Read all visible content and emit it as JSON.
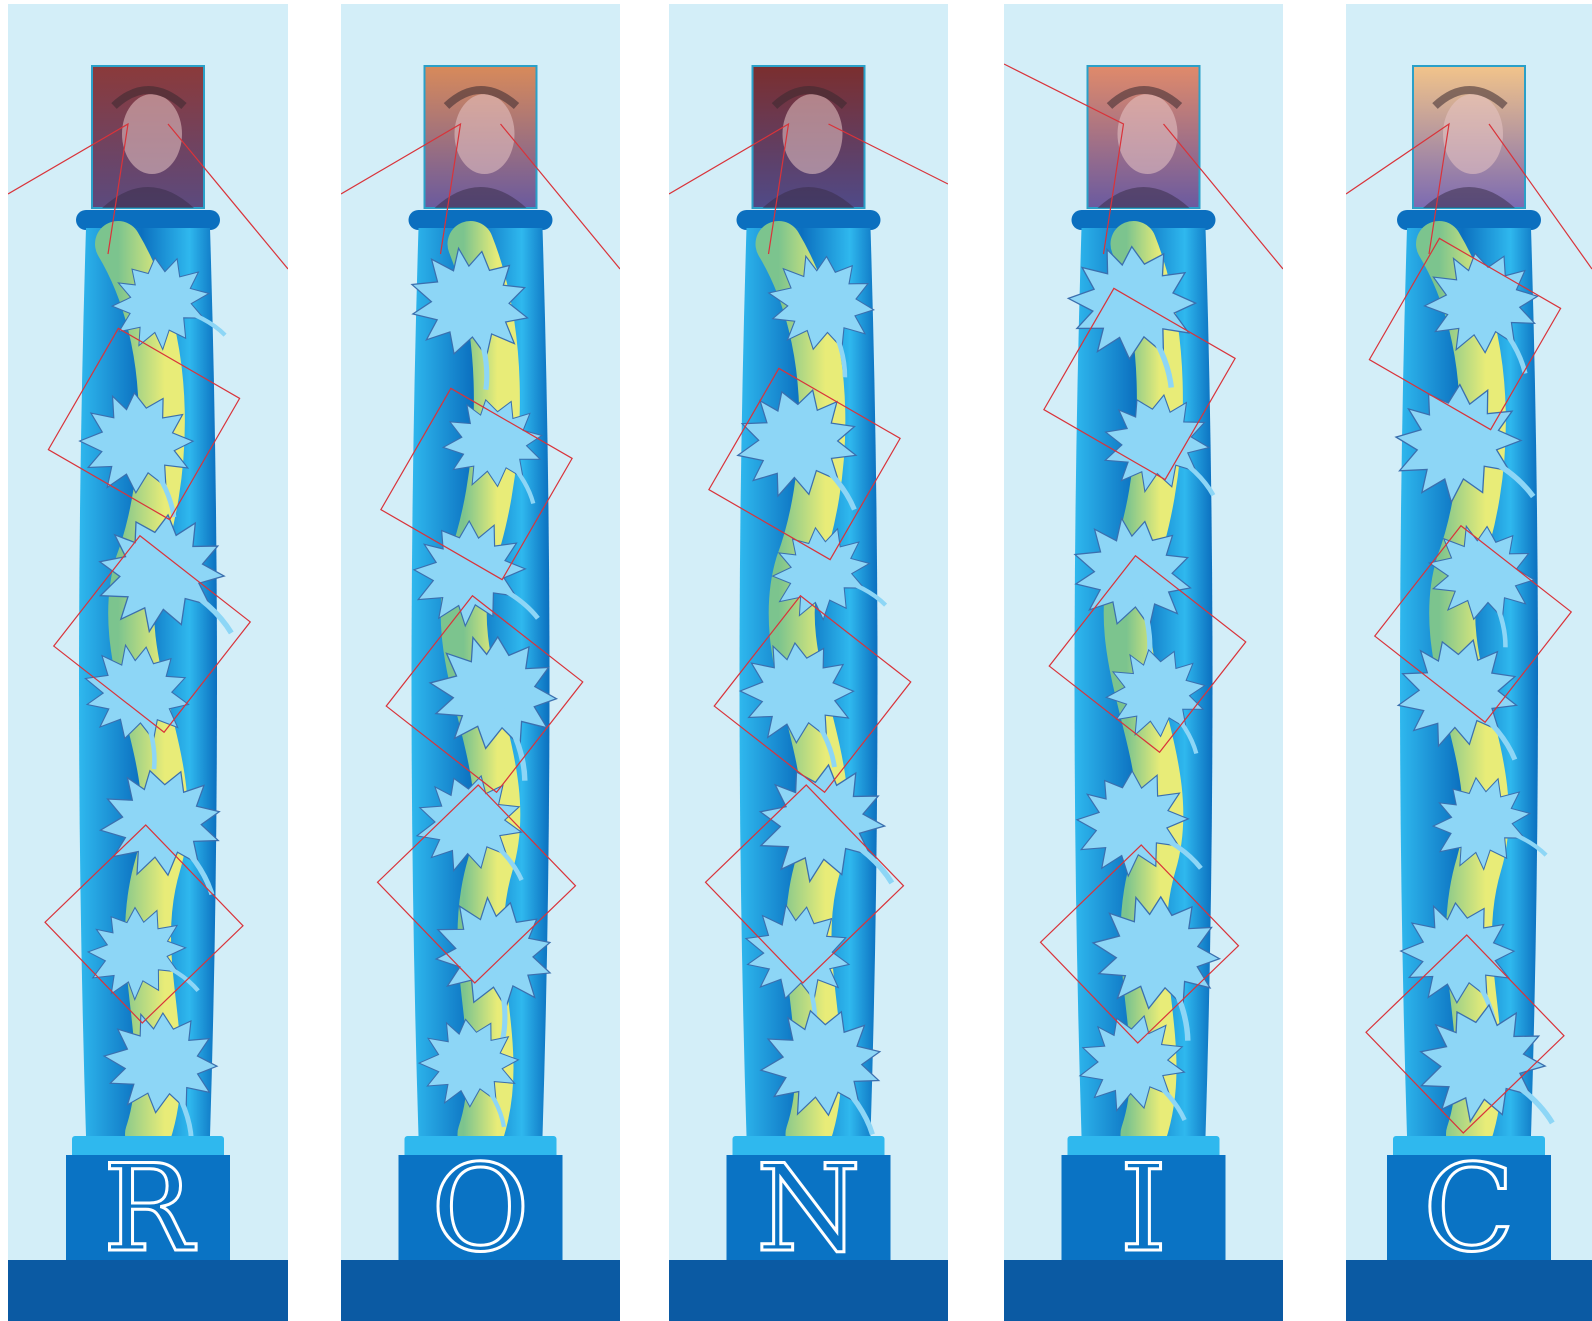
{
  "colors": {
    "sky": "#d3eef8",
    "column_dark": "#0b6fbf",
    "column_light": "#2fb8ee",
    "vine_yellow": "#e8ec78",
    "vine_green": "#7cc48e",
    "leaf_fill": "#8dd6f6",
    "leaf_stroke": "#3b6fae",
    "base_dark": "#0b5aa3",
    "pedestal": "#0a73c4",
    "overlay_red": "#d9333a",
    "letter": "#ffffff"
  },
  "panels": [
    {
      "letter": "R",
      "portrait": "portrait-1",
      "tone": [
        "#8b3a3a",
        "#5b4a7e"
      ]
    },
    {
      "letter": "O",
      "portrait": "portrait-2",
      "tone": [
        "#d88a5a",
        "#6a5a9e"
      ]
    },
    {
      "letter": "N",
      "portrait": "portrait-3",
      "tone": [
        "#7b2e2e",
        "#4f4a88"
      ]
    },
    {
      "letter": "I",
      "portrait": "portrait-4",
      "tone": [
        "#e08a6a",
        "#6a5aa0"
      ]
    },
    {
      "letter": "C",
      "portrait": "portrait-5",
      "tone": [
        "#f2c48a",
        "#7b6ab2"
      ]
    }
  ]
}
